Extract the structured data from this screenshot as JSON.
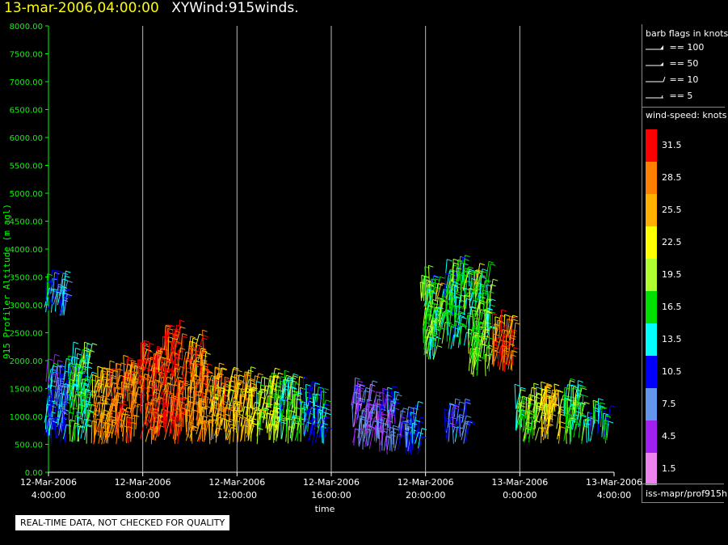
{
  "header": {
    "timestamp": "13-mar-2006,04:00:00",
    "title": "XYWind:915winds."
  },
  "notice": "REAL-TIME DATA, NOT CHECKED FOR QUALITY",
  "source": "iss-mapr/prof915h",
  "barb_legend": {
    "title": "barb flags in knots",
    "items": [
      {
        "label": "== 100",
        "kind": "pennant"
      },
      {
        "label": "== 50",
        "kind": "pennant"
      },
      {
        "label": "== 10",
        "kind": "full"
      },
      {
        "label": "== 5",
        "kind": "half"
      }
    ]
  },
  "speed_scale": {
    "title": "wind-speed: knots",
    "items": [
      {
        "label": "31.5",
        "color": "#ff0000"
      },
      {
        "label": "28.5",
        "color": "#ff7f00"
      },
      {
        "label": "25.5",
        "color": "#ffb000"
      },
      {
        "label": "22.5",
        "color": "#ffff00"
      },
      {
        "label": "19.5",
        "color": "#b0ff30"
      },
      {
        "label": "16.5",
        "color": "#00e000"
      },
      {
        "label": "13.5",
        "color": "#00ffff"
      },
      {
        "label": "10.5",
        "color": "#0000ff"
      },
      {
        "label": "7.5",
        "color": "#6495ed"
      },
      {
        "label": "4.5",
        "color": "#a020f0"
      },
      {
        "label": "1.5",
        "color": "#ee82ee"
      }
    ]
  },
  "chart_data": {
    "type": "scatter",
    "title": "XYWind:915winds.",
    "xlabel": "time",
    "ylabel": "915 Profiler Altitude (m agl)",
    "xlim": [
      "2006-03-12 04:00",
      "2006-03-13 04:00"
    ],
    "ylim": [
      0,
      8000
    ],
    "grid": "vertical",
    "yticks": [
      "0.00",
      "500.00",
      "1000.00",
      "1500.00",
      "2000.00",
      "2500.00",
      "3000.00",
      "3500.00",
      "4000.00",
      "4500.00",
      "5000.00",
      "5500.00",
      "6000.00",
      "6500.00",
      "7000.00",
      "7500.00",
      "8000.00"
    ],
    "xticks": [
      {
        "date": "12-Mar-2006",
        "time": "4:00:00"
      },
      {
        "date": "12-Mar-2006",
        "time": "8:00:00"
      },
      {
        "date": "12-Mar-2006",
        "time": "12:00:00"
      },
      {
        "date": "12-Mar-2006",
        "time": "16:00:00"
      },
      {
        "date": "12-Mar-2006",
        "time": "20:00:00"
      },
      {
        "date": "13-Mar-2006",
        "time": "0:00:00"
      },
      {
        "date": "13-Mar-2006",
        "time": "4:00:00"
      }
    ],
    "series_note": "wind barbs colored by wind speed (knots)",
    "clusters": [
      {
        "time": "2006-03-12 04:00",
        "alt_min": 500,
        "alt_max": 1700,
        "speed": 10
      },
      {
        "time": "2006-03-12 04:00",
        "alt_min": 2800,
        "alt_max": 3300,
        "speed": 11
      },
      {
        "time": "2006-03-12 05:00",
        "alt_min": 500,
        "alt_max": 2000,
        "speed": 16
      },
      {
        "time": "2006-03-12 06:00",
        "alt_min": 500,
        "alt_max": 1600,
        "speed": 27
      },
      {
        "time": "2006-03-12 07:00",
        "alt_min": 500,
        "alt_max": 1700,
        "speed": 28
      },
      {
        "time": "2006-03-12 08:00",
        "alt_min": 500,
        "alt_max": 2000,
        "speed": 29
      },
      {
        "time": "2006-03-12 09:00",
        "alt_min": 500,
        "alt_max": 2300,
        "speed": 30
      },
      {
        "time": "2006-03-12 10:00",
        "alt_min": 500,
        "alt_max": 2200,
        "speed": 27
      },
      {
        "time": "2006-03-12 11:00",
        "alt_min": 500,
        "alt_max": 1600,
        "speed": 25
      },
      {
        "time": "2006-03-12 12:00",
        "alt_min": 500,
        "alt_max": 1500,
        "speed": 24
      },
      {
        "time": "2006-03-12 13:00",
        "alt_min": 500,
        "alt_max": 1500,
        "speed": 21
      },
      {
        "time": "2006-03-12 14:00",
        "alt_min": 500,
        "alt_max": 1400,
        "speed": 17
      },
      {
        "time": "2006-03-12 15:00",
        "alt_min": 500,
        "alt_max": 1300,
        "speed": 12
      },
      {
        "time": "2006-03-12 17:00",
        "alt_min": 400,
        "alt_max": 1300,
        "speed": 6
      },
      {
        "time": "2006-03-12 18:00",
        "alt_min": 300,
        "alt_max": 1200,
        "speed": 8
      },
      {
        "time": "2006-03-12 19:00",
        "alt_min": 300,
        "alt_max": 900,
        "speed": 10
      },
      {
        "time": "2006-03-12 20:00",
        "alt_min": 2000,
        "alt_max": 3300,
        "speed": 17
      },
      {
        "time": "2006-03-12 21:00",
        "alt_min": 2200,
        "alt_max": 3500,
        "speed": 15
      },
      {
        "time": "2006-03-12 21:00",
        "alt_min": 500,
        "alt_max": 1000,
        "speed": 9
      },
      {
        "time": "2006-03-12 22:00",
        "alt_min": 1700,
        "alt_max": 3400,
        "speed": 18
      },
      {
        "time": "2006-03-12 23:00",
        "alt_min": 1800,
        "alt_max": 2500,
        "speed": 29
      },
      {
        "time": "2006-03-13 00:00",
        "alt_min": 500,
        "alt_max": 1200,
        "speed": 18
      },
      {
        "time": "2006-03-13 01:00",
        "alt_min": 500,
        "alt_max": 1300,
        "speed": 24
      },
      {
        "time": "2006-03-13 02:00",
        "alt_min": 500,
        "alt_max": 1300,
        "speed": 17
      },
      {
        "time": "2006-03-13 03:00",
        "alt_min": 500,
        "alt_max": 900,
        "speed": 14
      }
    ]
  }
}
